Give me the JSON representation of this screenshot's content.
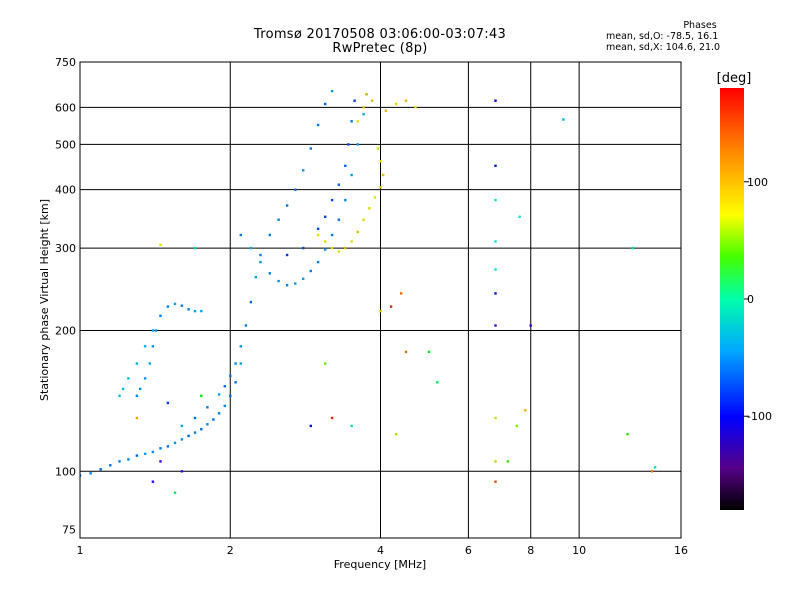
{
  "chart_data": {
    "type": "scatter",
    "title": "Tromsø 20170508 03:06:00-03:07:43",
    "subtitle": "RwPretec (8p)",
    "xlabel": "Frequency [MHz]",
    "ylabel": "Stationary phase Virtual Height [km]",
    "x_scale": "log",
    "y_scale": "log",
    "xlim": [
      1,
      16
    ],
    "ylim": [
      72,
      750
    ],
    "x_ticks": [
      1,
      2,
      4,
      6,
      8,
      10,
      16
    ],
    "x_tick_labels": [
      "1",
      "2",
      "4",
      "6",
      "8",
      "10",
      "16"
    ],
    "y_ticks": [
      75,
      100,
      200,
      300,
      400,
      500,
      600,
      750
    ],
    "y_tick_labels": [
      "75",
      "100",
      "200",
      "300",
      "400",
      "500",
      "600",
      "750"
    ],
    "grid": true,
    "colorbar": {
      "label": "[deg]",
      "range": [
        -180,
        180
      ],
      "ticks": [
        100,
        0,
        -100
      ],
      "tick_labels": [
        "100",
        "0",
        "-100"
      ]
    },
    "stats": {
      "heading": "Phases",
      "line1": "mean, sd,O: -78.5, 16.1",
      "line2": "mean, sd,X: 104.6, 21.0"
    },
    "series": [
      {
        "role": "O-trace low",
        "phase": -95,
        "points": [
          [
            1.0,
            98
          ],
          [
            1.05,
            99
          ],
          [
            1.1,
            101
          ],
          [
            1.15,
            103
          ],
          [
            1.2,
            105
          ],
          [
            1.25,
            106
          ],
          [
            1.3,
            108
          ],
          [
            1.35,
            109
          ],
          [
            1.4,
            110
          ],
          [
            1.45,
            112
          ],
          [
            1.5,
            113
          ],
          [
            1.55,
            115
          ],
          [
            1.6,
            117
          ],
          [
            1.65,
            119
          ],
          [
            1.7,
            121
          ],
          [
            1.75,
            123
          ],
          [
            1.8,
            126
          ],
          [
            1.85,
            129
          ],
          [
            1.9,
            133
          ],
          [
            1.95,
            138
          ],
          [
            2.0,
            145
          ],
          [
            2.05,
            155
          ],
          [
            2.1,
            170
          ]
        ]
      },
      {
        "role": "O-trace upper",
        "phase": -95,
        "points": [
          [
            1.6,
            125
          ],
          [
            1.7,
            130
          ],
          [
            1.8,
            137
          ],
          [
            1.9,
            146
          ],
          [
            1.95,
            152
          ],
          [
            2.0,
            160
          ],
          [
            2.05,
            170
          ],
          [
            2.1,
            185
          ],
          [
            2.15,
            205
          ],
          [
            2.2,
            230
          ],
          [
            2.25,
            260
          ],
          [
            2.3,
            290
          ],
          [
            2.4,
            320
          ],
          [
            2.5,
            345
          ],
          [
            2.6,
            370
          ],
          [
            2.7,
            400
          ],
          [
            2.8,
            440
          ],
          [
            2.9,
            490
          ],
          [
            3.0,
            550
          ],
          [
            3.1,
            610
          ],
          [
            3.2,
            650
          ]
        ]
      },
      {
        "role": "O-trace mid",
        "phase": -90,
        "points": [
          [
            2.1,
            320
          ],
          [
            2.2,
            300
          ],
          [
            2.3,
            280
          ],
          [
            2.4,
            265
          ],
          [
            2.5,
            255
          ],
          [
            2.6,
            250
          ],
          [
            2.7,
            252
          ],
          [
            2.8,
            258
          ],
          [
            2.9,
            268
          ],
          [
            3.0,
            280
          ],
          [
            3.1,
            298
          ],
          [
            3.2,
            320
          ],
          [
            3.3,
            345
          ],
          [
            3.4,
            380
          ],
          [
            3.5,
            430
          ],
          [
            3.6,
            500
          ],
          [
            3.7,
            580
          ],
          [
            3.75,
            640
          ]
        ]
      },
      {
        "role": "O-trace secondary",
        "phase": -90,
        "points": [
          [
            1.3,
            145
          ],
          [
            1.32,
            150
          ],
          [
            1.35,
            158
          ],
          [
            1.38,
            170
          ],
          [
            1.4,
            185
          ],
          [
            1.42,
            200
          ],
          [
            1.45,
            215
          ],
          [
            1.5,
            225
          ],
          [
            1.55,
            228
          ],
          [
            1.6,
            226
          ],
          [
            1.65,
            222
          ],
          [
            1.7,
            220
          ],
          [
            1.75,
            220
          ]
        ]
      },
      {
        "role": "O-trace low-frequency",
        "phase": -85,
        "points": [
          [
            1.2,
            145
          ],
          [
            1.22,
            150
          ],
          [
            1.25,
            158
          ],
          [
            1.3,
            170
          ],
          [
            1.35,
            185
          ],
          [
            1.4,
            200
          ]
        ]
      },
      {
        "role": "O-trace cusp",
        "phase": -110,
        "points": [
          [
            2.6,
            290
          ],
          [
            2.8,
            300
          ],
          [
            3.0,
            330
          ],
          [
            3.1,
            350
          ],
          [
            3.2,
            380
          ],
          [
            3.3,
            410
          ],
          [
            3.4,
            450
          ],
          [
            3.45,
            500
          ],
          [
            3.5,
            560
          ],
          [
            3.55,
            620
          ]
        ]
      },
      {
        "role": "X-trace",
        "phase": 105,
        "points": [
          [
            3.0,
            320
          ],
          [
            3.1,
            310
          ],
          [
            3.2,
            300
          ],
          [
            3.3,
            295
          ],
          [
            3.4,
            300
          ],
          [
            3.5,
            310
          ],
          [
            3.6,
            325
          ],
          [
            3.7,
            345
          ],
          [
            3.8,
            365
          ],
          [
            3.9,
            385
          ],
          [
            4.0,
            405
          ],
          [
            4.05,
            430
          ],
          [
            4.0,
            460
          ],
          [
            3.95,
            490
          ]
        ]
      },
      {
        "role": "X-trace upper",
        "phase": 110,
        "points": [
          [
            3.6,
            560
          ],
          [
            3.7,
            600
          ],
          [
            3.75,
            640
          ],
          [
            3.85,
            620
          ],
          [
            4.1,
            590
          ],
          [
            4.3,
            610
          ],
          [
            4.5,
            620
          ],
          [
            4.7,
            600
          ]
        ]
      },
      {
        "role": "noise",
        "phase": null,
        "points": [
          [
            1.45,
            105
          ],
          [
            1.6,
            100
          ],
          [
            1.3,
            130
          ],
          [
            1.5,
            140
          ],
          [
            1.4,
            95
          ],
          [
            1.55,
            90
          ],
          [
            6.8,
            310
          ],
          [
            6.8,
            270
          ],
          [
            6.8,
            240
          ],
          [
            6.8,
            205
          ],
          [
            6.8,
            620
          ],
          [
            6.8,
            450
          ],
          [
            6.8,
            380
          ],
          [
            6.8,
            130
          ],
          [
            6.8,
            105
          ],
          [
            6.8,
            95
          ],
          [
            7.2,
            105
          ],
          [
            7.6,
            350
          ],
          [
            7.8,
            135
          ],
          [
            8.0,
            205
          ],
          [
            9.3,
            565
          ],
          [
            12.5,
            120
          ],
          [
            12.8,
            300
          ],
          [
            14.0,
            100
          ],
          [
            14.2,
            102
          ],
          [
            4.5,
            180
          ],
          [
            5.0,
            180
          ],
          [
            3.1,
            170
          ],
          [
            3.2,
            130
          ],
          [
            3.5,
            125
          ],
          [
            4.3,
            120
          ],
          [
            4.4,
            240
          ],
          [
            4.2,
            225
          ],
          [
            4.0,
            220
          ],
          [
            2.9,
            125
          ],
          [
            1.75,
            145
          ],
          [
            1.7,
            300
          ],
          [
            1.45,
            305
          ],
          [
            5.2,
            155
          ],
          [
            7.5,
            125
          ]
        ]
      }
    ]
  }
}
